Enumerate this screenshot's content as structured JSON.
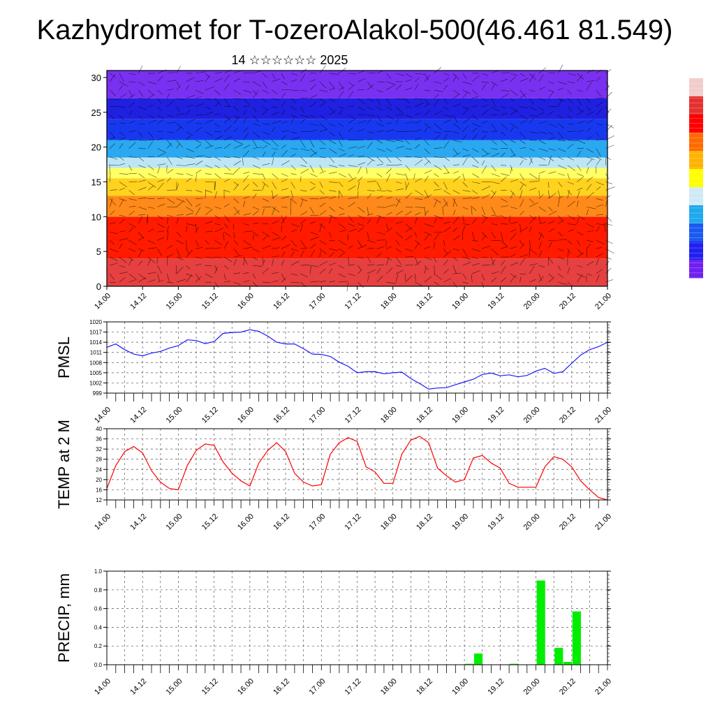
{
  "header": {
    "title": "Kazhydromet for T-ozeroAlakol-500(46.461 81.549)",
    "subtitle": "14 ☆☆☆☆☆☆ 2025"
  },
  "time_ticks": [
    "14.00",
    "14.12",
    "15.00",
    "15.12",
    "16.00",
    "16.12",
    "17.00",
    "17.12",
    "18.00",
    "18.12",
    "19.00",
    "19.12",
    "20.00",
    "20.12",
    "21.00"
  ],
  "colors": {
    "pmsl_line": "#1a1aff",
    "temp_line": "#ff0000",
    "precip_bar": "#00ee00",
    "frame": "#000000"
  },
  "chart_data": [
    {
      "type": "heatmap",
      "title": "",
      "xlabel": "",
      "ylabel": "",
      "x_ticks": [
        "14.00",
        "14.12",
        "15.00",
        "15.12",
        "16.00",
        "16.12",
        "17.00",
        "17.12",
        "18.00",
        "18.12",
        "19.00",
        "19.12",
        "20.00",
        "20.12",
        "21.00"
      ],
      "y_ticks": [
        0,
        5,
        10,
        15,
        20,
        25,
        30
      ],
      "ylim": [
        0,
        31
      ],
      "color_bands": [
        {
          "y_from": 0,
          "y_to": 4,
          "color": "#e64040"
        },
        {
          "y_from": 4,
          "y_to": 10,
          "color": "#ff1a00"
        },
        {
          "y_from": 10,
          "y_to": 13,
          "color": "#ff8a1a"
        },
        {
          "y_from": 13,
          "y_to": 15.5,
          "color": "#ffd21e"
        },
        {
          "y_from": 15.5,
          "y_to": 17,
          "color": "#ffff66"
        },
        {
          "y_from": 17,
          "y_to": 18.5,
          "color": "#bde6f5"
        },
        {
          "y_from": 18.5,
          "y_to": 21,
          "color": "#2aa8f0"
        },
        {
          "y_from": 21,
          "y_to": 24,
          "color": "#1838f0"
        },
        {
          "y_from": 24,
          "y_to": 27,
          "color": "#2020e0"
        },
        {
          "y_from": 27,
          "y_to": 31,
          "color": "#7a30f0"
        }
      ],
      "colorbar": [
        "#f2cccc",
        "#e53030",
        "#ff0000",
        "#ff6a00",
        "#ffb300",
        "#ffff00",
        "#d0eaf5",
        "#1fa8ee",
        "#1a5af0",
        "#2020f0",
        "#7020f0"
      ],
      "grid": false
    },
    {
      "type": "line",
      "ylabel": "PMSL",
      "ylim": [
        999,
        1020
      ],
      "y_ticks": [
        999,
        1002,
        1005,
        1008,
        1011,
        1014,
        1017,
        1020
      ],
      "x_ticks": [
        "14.00",
        "14.12",
        "15.00",
        "15.12",
        "16.00",
        "16.12",
        "17.00",
        "17.12",
        "18.00",
        "18.12",
        "19.00",
        "19.12",
        "20.00",
        "20.12",
        "21.00"
      ],
      "grid": true,
      "series": [
        {
          "x": [
            0,
            3,
            6,
            9,
            12,
            15,
            18,
            21,
            24,
            27,
            30,
            33,
            36,
            39,
            42,
            45,
            48,
            51,
            54,
            57,
            60,
            63,
            66,
            69,
            72,
            75,
            78,
            81,
            84,
            87,
            90,
            93,
            96,
            99,
            102,
            105,
            108,
            111,
            114,
            117,
            120,
            123,
            126,
            129,
            132,
            135,
            138,
            141,
            144,
            147,
            150,
            153,
            156,
            159,
            162,
            165,
            168
          ],
          "values": [
            1012.5,
            1013.5,
            1011.8,
            1010.5,
            1010.0,
            1010.8,
            1011.3,
            1012.3,
            1013.0,
            1014.7,
            1014.5,
            1013.6,
            1014.2,
            1016.6,
            1016.9,
            1017.0,
            1017.7,
            1017.2,
            1015.8,
            1014.0,
            1013.5,
            1013.5,
            1012.1,
            1010.5,
            1010.4,
            1009.8,
            1008.1,
            1006.9,
            1005.0,
            1005.3,
            1005.3,
            1004.7,
            1005.0,
            1005.2,
            1003.3,
            1001.8,
            1000.2,
            1000.5,
            1000.6,
            1001.5,
            1002.3,
            1003.1,
            1004.5,
            1004.9,
            1004.1,
            1004.4,
            1003.8,
            1004.2,
            1005.5,
            1006.3,
            1004.8,
            1005.3,
            1007.8,
            1010.2,
            1011.8,
            1012.7,
            1014.0
          ]
        }
      ]
    },
    {
      "type": "line",
      "ylabel": "TEMP at 2 M",
      "ylim": [
        12,
        40
      ],
      "y_ticks": [
        12,
        16,
        20,
        24,
        28,
        32,
        36,
        40
      ],
      "x_ticks": [
        "14.00",
        "14.12",
        "15.00",
        "15.12",
        "16.00",
        "16.12",
        "17.00",
        "17.12",
        "18.00",
        "18.12",
        "19.00",
        "19.12",
        "20.00",
        "20.12",
        "21.00"
      ],
      "grid": true,
      "series": [
        {
          "x": [
            0,
            3,
            6,
            9,
            12,
            15,
            18,
            21,
            24,
            27,
            30,
            33,
            36,
            39,
            42,
            45,
            48,
            51,
            54,
            57,
            60,
            63,
            66,
            69,
            72,
            75,
            78,
            81,
            84,
            87,
            90,
            93,
            96,
            99,
            102,
            105,
            108,
            111,
            114,
            117,
            120,
            123,
            126,
            129,
            132,
            135,
            138,
            141,
            144,
            147,
            150,
            153,
            156,
            159,
            162,
            165,
            168
          ],
          "values": [
            16.5,
            25.5,
            31.0,
            33.0,
            30.5,
            23.5,
            19.0,
            16.5,
            16.0,
            25.5,
            31.5,
            34.0,
            33.5,
            27.0,
            22.5,
            19.5,
            17.5,
            26.5,
            31.5,
            34.5,
            31.0,
            22.5,
            19.0,
            17.5,
            18.0,
            30.0,
            34.5,
            36.5,
            35.0,
            25.0,
            23.0,
            18.5,
            18.5,
            30.0,
            35.5,
            37.0,
            34.5,
            24.5,
            21.5,
            19.0,
            20.0,
            28.5,
            29.5,
            26.5,
            24.5,
            18.5,
            17.0,
            17.0,
            17.0,
            25.0,
            29.0,
            28.0,
            25.0,
            19.5,
            16.0,
            13.0,
            12.0
          ]
        }
      ]
    },
    {
      "type": "bar",
      "ylabel": "PRECIP, mm",
      "ylim": [
        0,
        1.0
      ],
      "y_ticks": [
        "0.0",
        "0.2",
        "0.4",
        "0.6",
        "0.8",
        "1.0"
      ],
      "x_ticks": [
        "14.00",
        "14.12",
        "15.00",
        "15.12",
        "16.00",
        "16.12",
        "17.00",
        "17.12",
        "18.00",
        "18.12",
        "19.00",
        "19.12",
        "20.00",
        "20.12",
        "21.00"
      ],
      "grid": true,
      "series": [
        {
          "x": [
            120,
            123,
            135,
            144,
            150,
            153,
            156
          ],
          "values": [
            0.01,
            0.12,
            0.01,
            0.9,
            0.18,
            0.03,
            0.57
          ]
        }
      ]
    }
  ]
}
